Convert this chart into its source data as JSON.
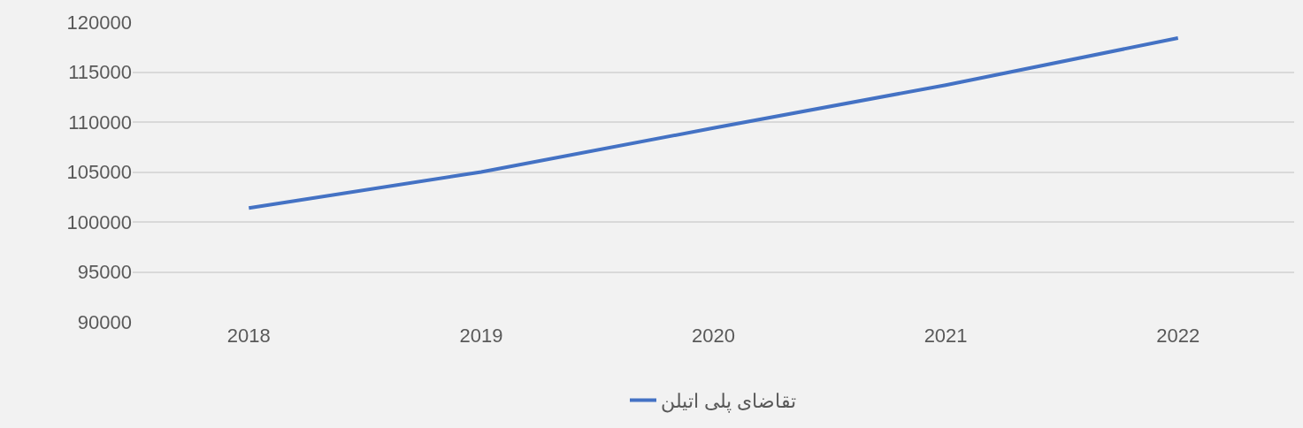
{
  "chart_data": {
    "type": "line",
    "categories": [
      "2018",
      "2019",
      "2020",
      "2021",
      "2022"
    ],
    "series": [
      {
        "name": "تقاضای پلی اتیلن",
        "color": "#4472c4",
        "values": [
          101400,
          105000,
          109400,
          113700,
          118400
        ]
      }
    ],
    "ylim": [
      90000,
      120000
    ],
    "yticks": [
      90000,
      95000,
      100000,
      105000,
      110000,
      115000,
      120000
    ],
    "grid": "y",
    "legend": "bottom",
    "marker": "none",
    "line_style": "solid"
  }
}
